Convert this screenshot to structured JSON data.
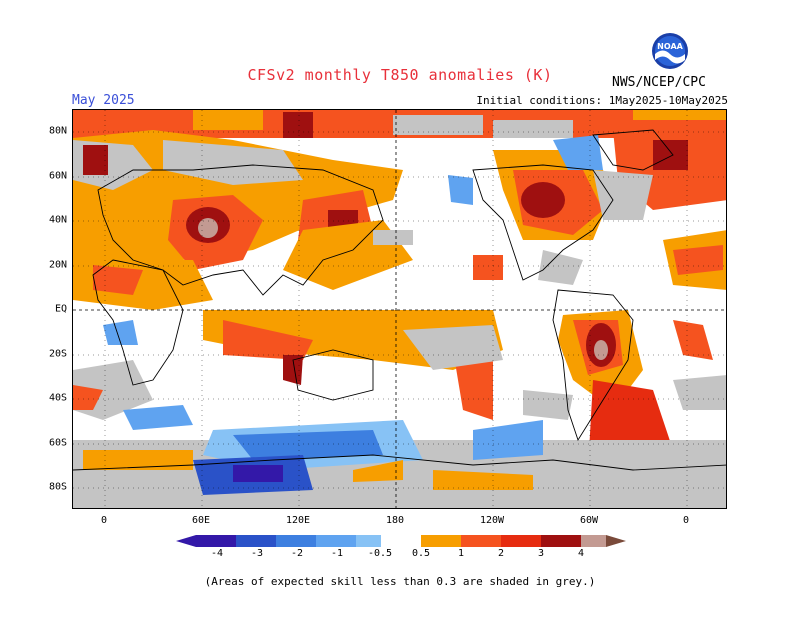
{
  "header": {
    "title": "CFSv2 monthly T850 anomalies (K)",
    "month": "May 2025",
    "initial_conditions": "Initial conditions: 1May2025-10May2025",
    "agency": "NWS/NCEP/CPC",
    "logo_text": "NOAA"
  },
  "map": {
    "lat_labels": [
      "80N",
      "60N",
      "40N",
      "20N",
      "EQ",
      "20S",
      "40S",
      "60S",
      "80S"
    ],
    "lon_labels": [
      "0",
      "60E",
      "120E",
      "180",
      "120W",
      "60W",
      "0"
    ],
    "colors": {
      "neg4": "#3318a8",
      "neg3": "#2a52c8",
      "neg2": "#3d7fe0",
      "neg1": "#5fa3f0",
      "neg05": "#87c2f5",
      "pos05": "#f79e00",
      "pos1": "#f5531f",
      "pos2": "#e62c10",
      "pos3": "#9f1010",
      "pos4": "#c39a92",
      "pos5": "#7a4a3a",
      "grey": "#c4c4c4"
    }
  },
  "colorbar": {
    "labels": [
      "-4",
      "-3",
      "-2",
      "-1",
      "-0.5",
      "0.5",
      "1",
      "2",
      "3",
      "4"
    ]
  },
  "footer": {
    "note": "(Areas of expected skill less than 0.3 are shaded in grey.)"
  }
}
